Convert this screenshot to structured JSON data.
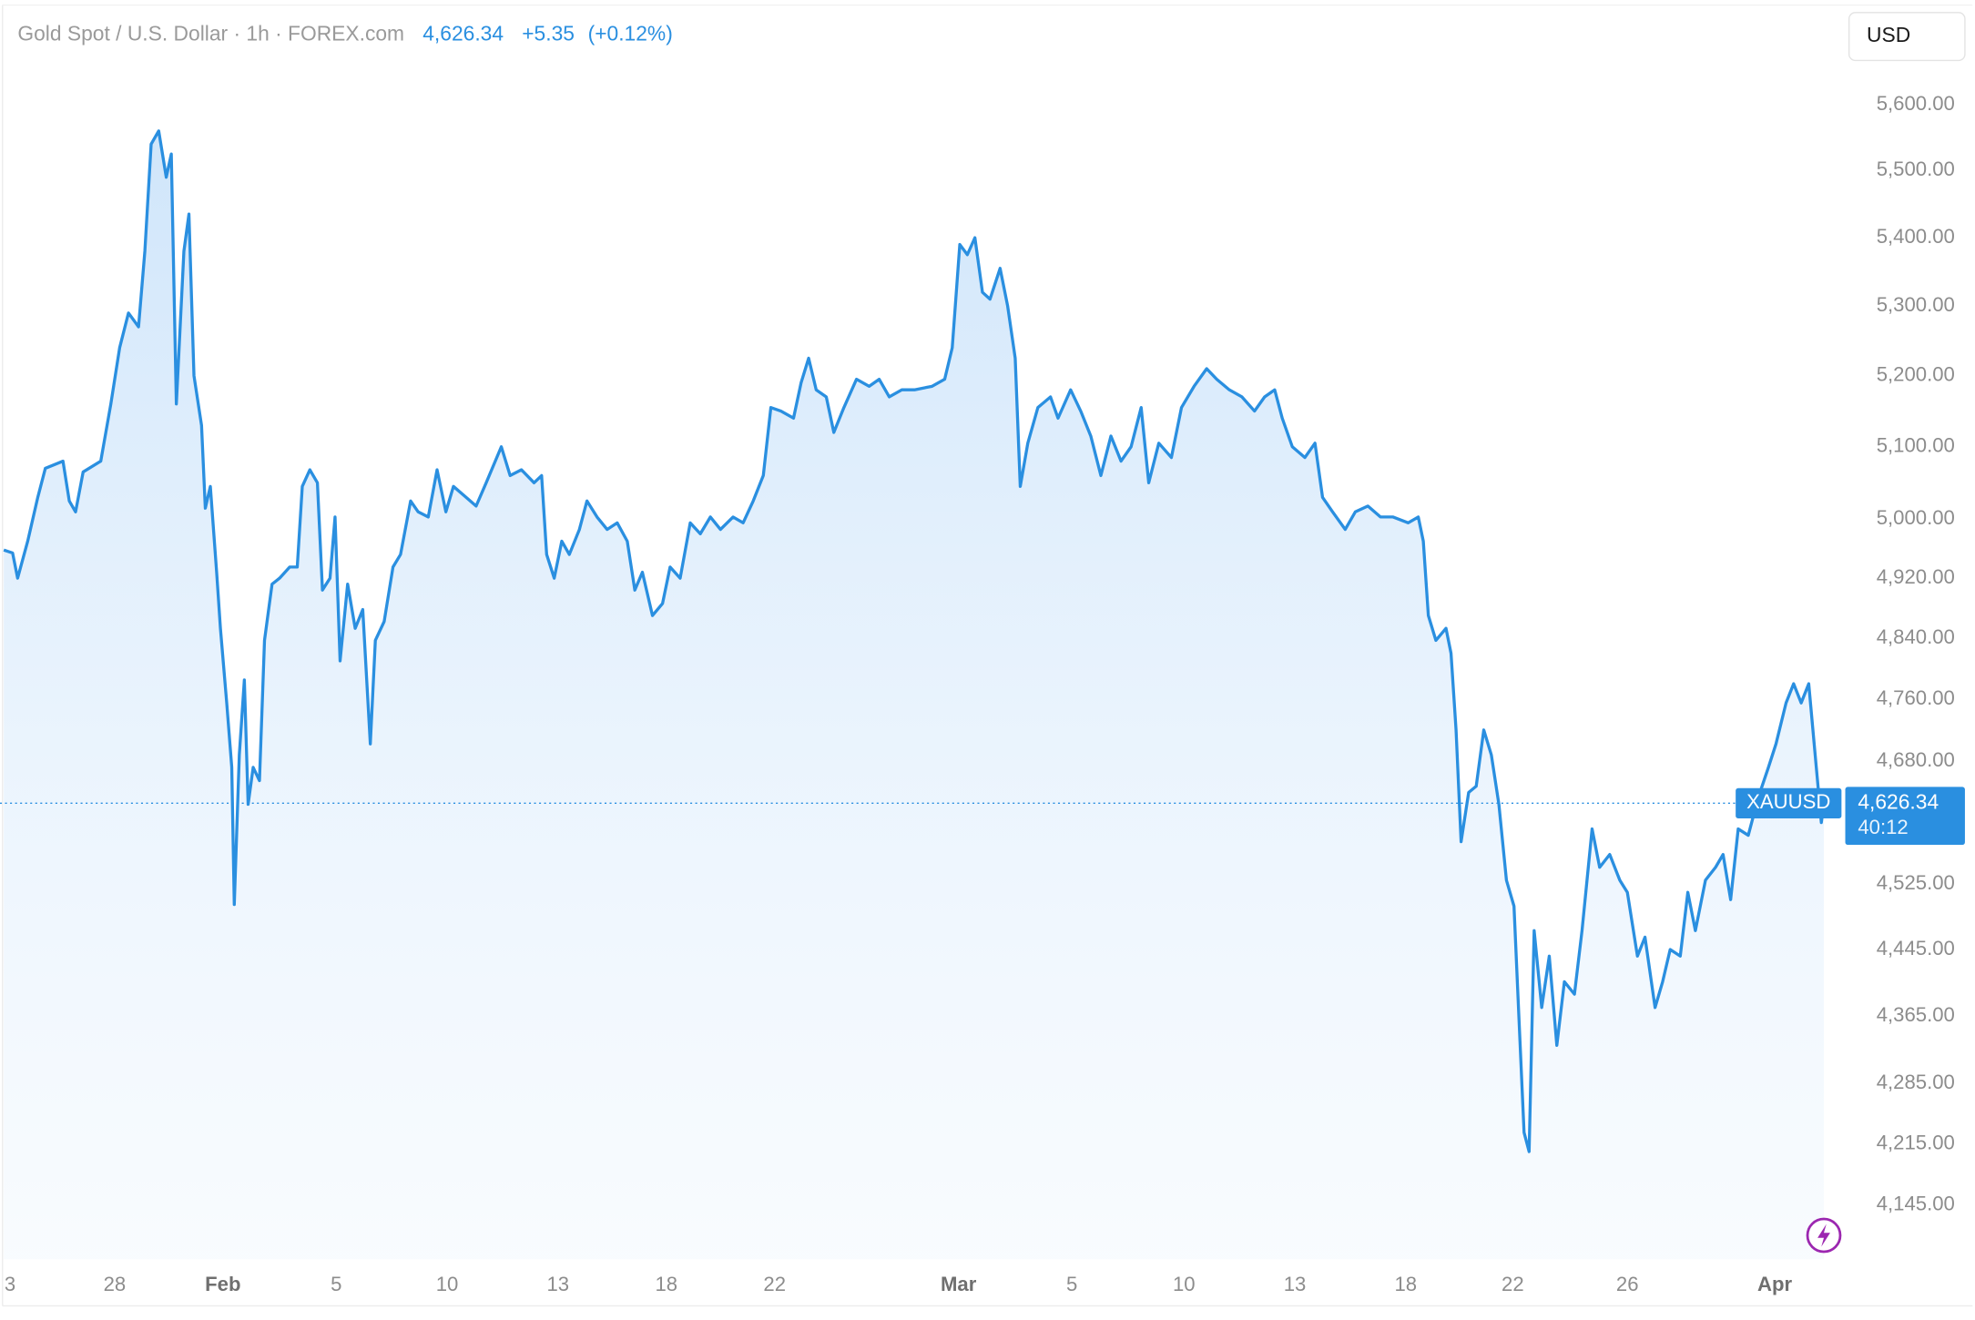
{
  "chart_data": {
    "type": "line",
    "title": "Gold Spot / U.S. Dollar · 1h · FOREX.com",
    "last_price": {
      "value": 4626.34,
      "label": "4,626.34"
    },
    "change": "+5.35",
    "change_percent": "(+0.12%)",
    "currency": "USD",
    "countdown": "40:12",
    "log_scale": true,
    "grid": false,
    "xlim": [
      0,
      1461
    ],
    "ylim": [
      4084,
      5674
    ],
    "xticks": [
      {
        "value": 8,
        "label": "3"
      },
      {
        "value": 91,
        "label": "28"
      },
      {
        "value": 177,
        "label": "Feb"
      },
      {
        "value": 267,
        "label": "5"
      },
      {
        "value": 355,
        "label": "10"
      },
      {
        "value": 443,
        "label": "13"
      },
      {
        "value": 529,
        "label": "18"
      },
      {
        "value": 615,
        "label": "22"
      },
      {
        "value": 761,
        "label": "Mar"
      },
      {
        "value": 851,
        "label": "5"
      },
      {
        "value": 940,
        "label": "10"
      },
      {
        "value": 1028,
        "label": "13"
      },
      {
        "value": 1116,
        "label": "18"
      },
      {
        "value": 1201,
        "label": "22"
      },
      {
        "value": 1292,
        "label": "26"
      },
      {
        "value": 1409,
        "label": "Apr"
      }
    ],
    "yticks": [
      {
        "value": 5600,
        "label": "5,600.00"
      },
      {
        "value": 5500,
        "label": "5,500.00"
      },
      {
        "value": 5400,
        "label": "5,400.00"
      },
      {
        "value": 5300,
        "label": "5,300.00"
      },
      {
        "value": 5200,
        "label": "5,200.00"
      },
      {
        "value": 5100,
        "label": "5,100.00"
      },
      {
        "value": 5000,
        "label": "5,000.00"
      },
      {
        "value": 4920,
        "label": "4,920.00"
      },
      {
        "value": 4840,
        "label": "4,840.00"
      },
      {
        "value": 4760,
        "label": "4,760.00"
      },
      {
        "value": 4680,
        "label": "4,680.00"
      },
      {
        "value": 4525,
        "label": "4,525.00"
      },
      {
        "value": 4445,
        "label": "4,445.00"
      },
      {
        "value": 4365,
        "label": "4,365.00"
      },
      {
        "value": 4285,
        "label": "4,285.00"
      },
      {
        "value": 4215,
        "label": "4,215.00"
      },
      {
        "value": 4145,
        "label": "4,145.00"
      }
    ],
    "series": [
      {
        "name": "XAUUSD",
        "color": "#2a8fe0",
        "x": [
          3,
          10,
          14,
          22,
          30,
          36,
          50,
          55,
          60,
          66,
          80,
          88,
          95,
          102,
          110,
          115,
          120,
          126,
          132,
          136,
          140,
          146,
          150,
          154,
          160,
          163,
          167,
          172,
          175,
          180,
          184,
          186,
          190,
          194,
          197,
          201,
          206,
          210,
          216,
          222,
          230,
          236,
          240,
          246,
          252,
          256,
          262,
          266,
          270,
          276,
          282,
          288,
          294,
          298,
          305,
          312,
          318,
          326,
          332,
          340,
          347,
          354,
          360,
          370,
          378,
          386,
          398,
          405,
          414,
          424,
          430,
          434,
          440,
          446,
          452,
          460,
          466,
          474,
          482,
          490,
          498,
          504,
          510,
          518,
          526,
          532,
          540,
          548,
          556,
          564,
          572,
          582,
          590,
          598,
          606,
          612,
          620,
          630,
          636,
          642,
          648,
          656,
          662,
          670,
          680,
          690,
          698,
          706,
          716,
          726,
          740,
          750,
          756,
          762,
          768,
          774,
          780,
          786,
          794,
          800,
          806,
          810,
          816,
          824,
          834,
          840,
          850,
          858,
          866,
          874,
          882,
          890,
          898,
          906,
          912,
          920,
          930,
          938,
          948,
          958,
          966,
          976,
          986,
          996,
          1004,
          1012,
          1018,
          1026,
          1036,
          1044,
          1050,
          1058,
          1068,
          1076,
          1086,
          1096,
          1106,
          1118,
          1126,
          1130,
          1134,
          1140,
          1148,
          1152,
          1156,
          1160,
          1166,
          1172,
          1178,
          1184,
          1190,
          1196,
          1202,
          1206,
          1210,
          1214,
          1218,
          1224,
          1230,
          1236,
          1242,
          1250,
          1256,
          1264,
          1270,
          1278,
          1286,
          1292,
          1300,
          1306,
          1314,
          1320,
          1326,
          1334,
          1340,
          1346,
          1354,
          1362,
          1368,
          1374,
          1380,
          1388,
          1396,
          1404,
          1410,
          1418,
          1424,
          1430,
          1436,
          1442,
          1446,
          1448
        ],
        "values": [
          4958,
          4954,
          4920,
          4970,
          5030,
          5070,
          5080,
          5025,
          5010,
          5065,
          5080,
          5160,
          5240,
          5290,
          5270,
          5380,
          5540,
          5560,
          5490,
          5525,
          5160,
          5380,
          5435,
          5200,
          5130,
          5015,
          5045,
          4928,
          4853,
          4755,
          4672,
          4500,
          4688,
          4785,
          4625,
          4672,
          4655,
          4837,
          4912,
          4920,
          4935,
          4935,
          5045,
          5068,
          5050,
          4904,
          4920,
          5003,
          4810,
          4912,
          4853,
          4878,
          4702,
          4837,
          4862,
          4935,
          4952,
          5025,
          5010,
          5003,
          5068,
          5010,
          5045,
          5030,
          5018,
          5050,
          5100,
          5060,
          5068,
          5050,
          5060,
          4952,
          4920,
          4970,
          4952,
          4986,
          5025,
          5003,
          4986,
          4995,
          4970,
          4904,
          4928,
          4870,
          4886,
          4935,
          4920,
          4995,
          4980,
          5003,
          4986,
          5003,
          4995,
          5025,
          5060,
          5155,
          5150,
          5140,
          5190,
          5225,
          5180,
          5170,
          5120,
          5155,
          5195,
          5185,
          5195,
          5170,
          5180,
          5180,
          5185,
          5195,
          5240,
          5390,
          5375,
          5400,
          5320,
          5310,
          5355,
          5300,
          5225,
          5045,
          5105,
          5155,
          5170,
          5140,
          5180,
          5150,
          5115,
          5060,
          5115,
          5080,
          5100,
          5155,
          5050,
          5105,
          5085,
          5155,
          5185,
          5210,
          5195,
          5180,
          5170,
          5150,
          5170,
          5180,
          5140,
          5100,
          5085,
          5105,
          5030,
          5010,
          4986,
          5010,
          5018,
          5003,
          5003,
          4995,
          5003,
          4970,
          4870,
          4837,
          4853,
          4820,
          4720,
          4578,
          4640,
          4648,
          4720,
          4688,
          4625,
          4530,
          4498,
          4360,
          4228,
          4206,
          4468,
          4375,
          4437,
          4330,
          4406,
          4391,
          4468,
          4594,
          4546,
          4562,
          4530,
          4515,
          4437,
          4460,
          4375,
          4406,
          4445,
          4437,
          4515,
          4468,
          4530,
          4546,
          4562,
          4506,
          4594,
          4586,
          4634,
          4672,
          4702,
          4755,
          4780,
          4755,
          4780,
          4672,
          4602,
          4626.34
        ]
      }
    ]
  }
}
